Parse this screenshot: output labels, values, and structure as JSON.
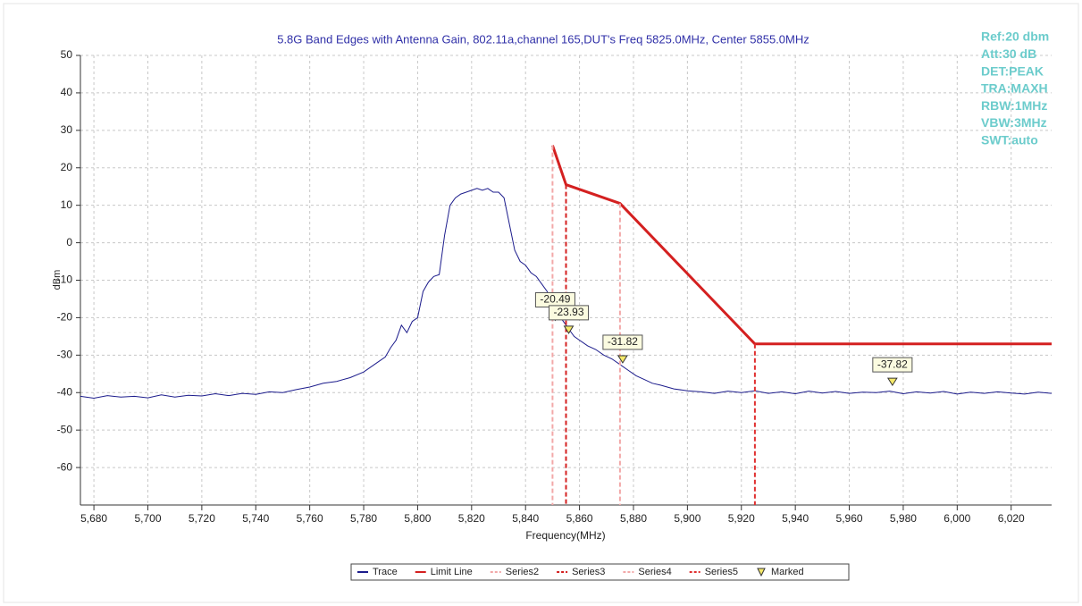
{
  "chart_data": {
    "type": "line",
    "title": "5.8G Band Edges with Antenna Gain, 802.11a,channel 165,DUT's Freq 5825.0MHz, Center 5855.0MHz",
    "x_label": "Frequency(MHz)",
    "y_label": "dBm",
    "annotations": [
      "Ref:20 dbm",
      "Att:30 dB",
      "DET:PEAK",
      "TRA:MAXH",
      "RBW:1MHz",
      "VBW:3MHz",
      "SWT:auto"
    ],
    "xlim": [
      5675,
      6035
    ],
    "ylim": [
      -70,
      50
    ],
    "xticks": [
      {
        "value": 5680,
        "label": "5,680"
      },
      {
        "value": 5700,
        "label": "5,700"
      },
      {
        "value": 5720,
        "label": "5,720"
      },
      {
        "value": 5740,
        "label": "5,740"
      },
      {
        "value": 5760,
        "label": "5,760"
      },
      {
        "value": 5780,
        "label": "5,780"
      },
      {
        "value": 5800,
        "label": "5,800"
      },
      {
        "value": 5820,
        "label": "5,820"
      },
      {
        "value": 5840,
        "label": "5,840"
      },
      {
        "value": 5860,
        "label": "5,860"
      },
      {
        "value": 5880,
        "label": "5,880"
      },
      {
        "value": 5900,
        "label": "5,900"
      },
      {
        "value": 5920,
        "label": "5,920"
      },
      {
        "value": 5940,
        "label": "5,940"
      },
      {
        "value": 5960,
        "label": "5,960"
      },
      {
        "value": 5980,
        "label": "5,980"
      },
      {
        "value": 6000,
        "label": "6,000"
      },
      {
        "value": 6020,
        "label": "6,020"
      }
    ],
    "yticks": [
      50,
      40,
      30,
      20,
      10,
      0,
      -10,
      -20,
      -30,
      -40,
      -50,
      -60
    ],
    "grid": true,
    "legend": "bottom",
    "series": [
      {
        "name": "Trace",
        "color": "#1c1c8c",
        "style": "solid",
        "x": [
          5675,
          5680,
          5685,
          5690,
          5695,
          5700,
          5705,
          5710,
          5715,
          5720,
          5725,
          5730,
          5735,
          5740,
          5745,
          5750,
          5755,
          5760,
          5765,
          5770,
          5775,
          5780,
          5785,
          5788,
          5790,
          5792,
          5794,
          5796,
          5798,
          5800,
          5802,
          5804,
          5806,
          5808,
          5810,
          5812,
          5814,
          5816,
          5818,
          5820,
          5822,
          5824,
          5826,
          5828,
          5830,
          5832,
          5834,
          5836,
          5838,
          5840,
          5842,
          5844,
          5846,
          5848,
          5850,
          5852,
          5854,
          5856,
          5858,
          5860,
          5863,
          5866,
          5869,
          5872,
          5875,
          5878,
          5881,
          5884,
          5887,
          5890,
          5895,
          5900,
          5905,
          5910,
          5915,
          5920,
          5925,
          5930,
          5935,
          5940,
          5945,
          5950,
          5955,
          5960,
          5965,
          5970,
          5975,
          5980,
          5985,
          5990,
          5995,
          6000,
          6005,
          6010,
          6015,
          6020,
          6025,
          6030,
          6035
        ],
        "values": [
          -41,
          -41.5,
          -40.8,
          -41.2,
          -41,
          -41.4,
          -40.6,
          -41.2,
          -40.7,
          -40.9,
          -40.3,
          -40.8,
          -40.2,
          -40.5,
          -39.8,
          -40,
          -39.2,
          -38.5,
          -37.5,
          -37,
          -36,
          -34.5,
          -32,
          -30.5,
          -28,
          -26,
          -22,
          -24,
          -21,
          -20,
          -13,
          -10.5,
          -9,
          -8.5,
          2,
          10,
          12,
          13,
          13.5,
          14,
          14.5,
          14,
          14.5,
          13.5,
          13.5,
          12,
          5,
          -2,
          -5,
          -6,
          -8,
          -9,
          -11,
          -13,
          -17,
          -19,
          -21,
          -23,
          -25,
          -26,
          -27.5,
          -28.5,
          -30,
          -31,
          -32.5,
          -34,
          -35.5,
          -36.5,
          -37.5,
          -38,
          -39,
          -39.5,
          -39.8,
          -40.2,
          -39.6,
          -40,
          -39.5,
          -40.2,
          -39.8,
          -40.3,
          -39.6,
          -40.1,
          -39.7,
          -40.2,
          -39.9,
          -40,
          -39.6,
          -40.3,
          -39.8,
          -40.1,
          -39.7,
          -40.4,
          -39.9,
          -40.2,
          -39.8,
          -40.1,
          -40.4,
          -39.9,
          -40.2
        ]
      },
      {
        "name": "Limit Line",
        "color": "#d42020",
        "style": "solid",
        "x": [
          5850,
          5855,
          5875,
          5925,
          6035
        ],
        "values": [
          26,
          15.5,
          10.5,
          -27,
          -27
        ]
      },
      {
        "name": "Series2",
        "color": "#f2a8a8",
        "style": "dashed",
        "x": [
          5850,
          5850
        ],
        "values": [
          26,
          -70
        ]
      },
      {
        "name": "Series3",
        "color": "#d42020",
        "style": "dashed",
        "x": [
          5855,
          5855
        ],
        "values": [
          15.5,
          -70
        ]
      },
      {
        "name": "Series4",
        "color": "#f2a8a8",
        "style": "dashed",
        "x": [
          5875,
          5875
        ],
        "values": [
          10.5,
          -70
        ]
      },
      {
        "name": "Series5",
        "color": "#e03030",
        "style": "dashed",
        "x": [
          5925,
          5925
        ],
        "values": [
          -27,
          -70
        ]
      },
      {
        "name": "Marked",
        "color": "#f5e96a",
        "style": "marker",
        "x": [
          5851,
          5856,
          5876,
          5976
        ],
        "values": [
          -20.49,
          -23.93,
          -31.82,
          -37.82
        ]
      }
    ]
  }
}
